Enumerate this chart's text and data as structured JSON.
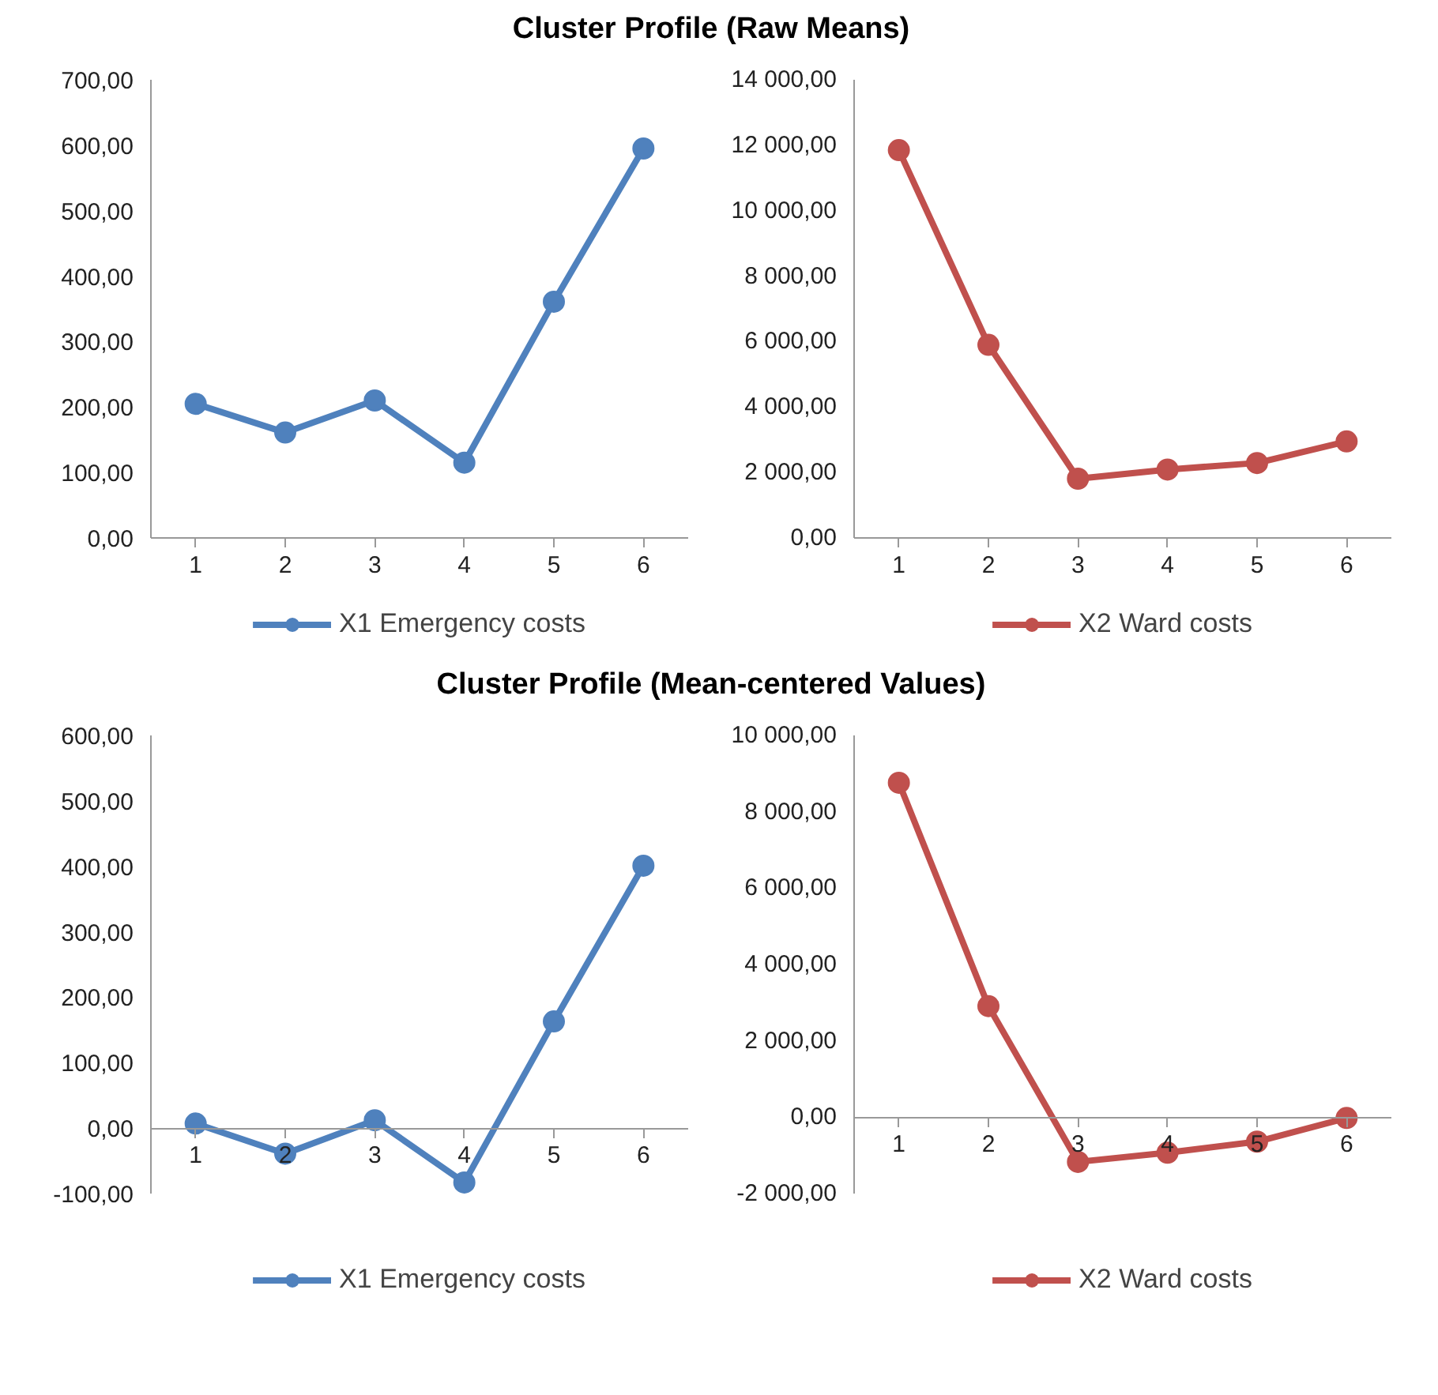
{
  "chart_data": [
    {
      "type": "line",
      "title": "Cluster Profile (Raw Means)",
      "categories": [
        "1",
        "2",
        "3",
        "4",
        "5",
        "6"
      ],
      "series": [
        {
          "name": "X1 Emergency costs",
          "color": "#4f81bd",
          "values": [
            205,
            161,
            210,
            115,
            361,
            595
          ]
        }
      ],
      "ylim": [
        0,
        700
      ],
      "yticks": [
        {
          "value": 0,
          "label": "0,00"
        },
        {
          "value": 100,
          "label": "100,00"
        },
        {
          "value": 200,
          "label": "200,00"
        },
        {
          "value": 300,
          "label": "300,00"
        },
        {
          "value": 400,
          "label": "400,00"
        },
        {
          "value": 500,
          "label": "500,00"
        },
        {
          "value": 600,
          "label": "600,00"
        },
        {
          "value": 700,
          "label": "700,00"
        }
      ],
      "grid": false,
      "legend": "bottom",
      "marker": "circle"
    },
    {
      "type": "line",
      "categories": [
        "1",
        "2",
        "3",
        "4",
        "5",
        "6"
      ],
      "series": [
        {
          "name": "X2 Ward costs",
          "color": "#c0504d",
          "values": [
            11850,
            5900,
            1810,
            2090,
            2290,
            2950
          ]
        }
      ],
      "ylim": [
        0,
        14000
      ],
      "yticks": [
        {
          "value": 0,
          "label": "0,00"
        },
        {
          "value": 2000,
          "label": "2 000,00"
        },
        {
          "value": 4000,
          "label": "4 000,00"
        },
        {
          "value": 6000,
          "label": "6 000,00"
        },
        {
          "value": 8000,
          "label": "8 000,00"
        },
        {
          "value": 10000,
          "label": "10 000,00"
        },
        {
          "value": 12000,
          "label": "12 000,00"
        },
        {
          "value": 14000,
          "label": "14 000,00"
        }
      ],
      "grid": false,
      "legend": "bottom",
      "marker": "circle"
    },
    {
      "type": "line",
      "title": "Cluster Profile (Mean-centered Values)",
      "categories": [
        "1",
        "2",
        "3",
        "4",
        "5",
        "6"
      ],
      "series": [
        {
          "name": "X1 Emergency costs",
          "color": "#4f81bd",
          "values": [
            7,
            -39,
            12,
            -83,
            163,
            401
          ]
        }
      ],
      "ylim": [
        -100,
        600
      ],
      "yticks": [
        {
          "value": -100,
          "label": "-100,00"
        },
        {
          "value": 0,
          "label": "0,00"
        },
        {
          "value": 100,
          "label": "100,00"
        },
        {
          "value": 200,
          "label": "200,00"
        },
        {
          "value": 300,
          "label": "300,00"
        },
        {
          "value": 400,
          "label": "400,00"
        },
        {
          "value": 500,
          "label": "500,00"
        },
        {
          "value": 600,
          "label": "600,00"
        }
      ],
      "grid": false,
      "legend": "bottom",
      "marker": "circle"
    },
    {
      "type": "line",
      "categories": [
        "1",
        "2",
        "3",
        "4",
        "5",
        "6"
      ],
      "series": [
        {
          "name": "X2 Ward costs",
          "color": "#c0504d",
          "values": [
            8760,
            2910,
            -1170,
            -930,
            -640,
            -20
          ]
        }
      ],
      "ylim": [
        -2000,
        10000
      ],
      "yticks": [
        {
          "value": -2000,
          "label": "-2 000,00"
        },
        {
          "value": 0,
          "label": "0,00"
        },
        {
          "value": 2000,
          "label": "2 000,00"
        },
        {
          "value": 4000,
          "label": "4 000,00"
        },
        {
          "value": 6000,
          "label": "6 000,00"
        },
        {
          "value": 8000,
          "label": "8 000,00"
        },
        {
          "value": 10000,
          "label": "10 000,00"
        }
      ],
      "grid": false,
      "legend": "bottom",
      "marker": "circle"
    }
  ]
}
